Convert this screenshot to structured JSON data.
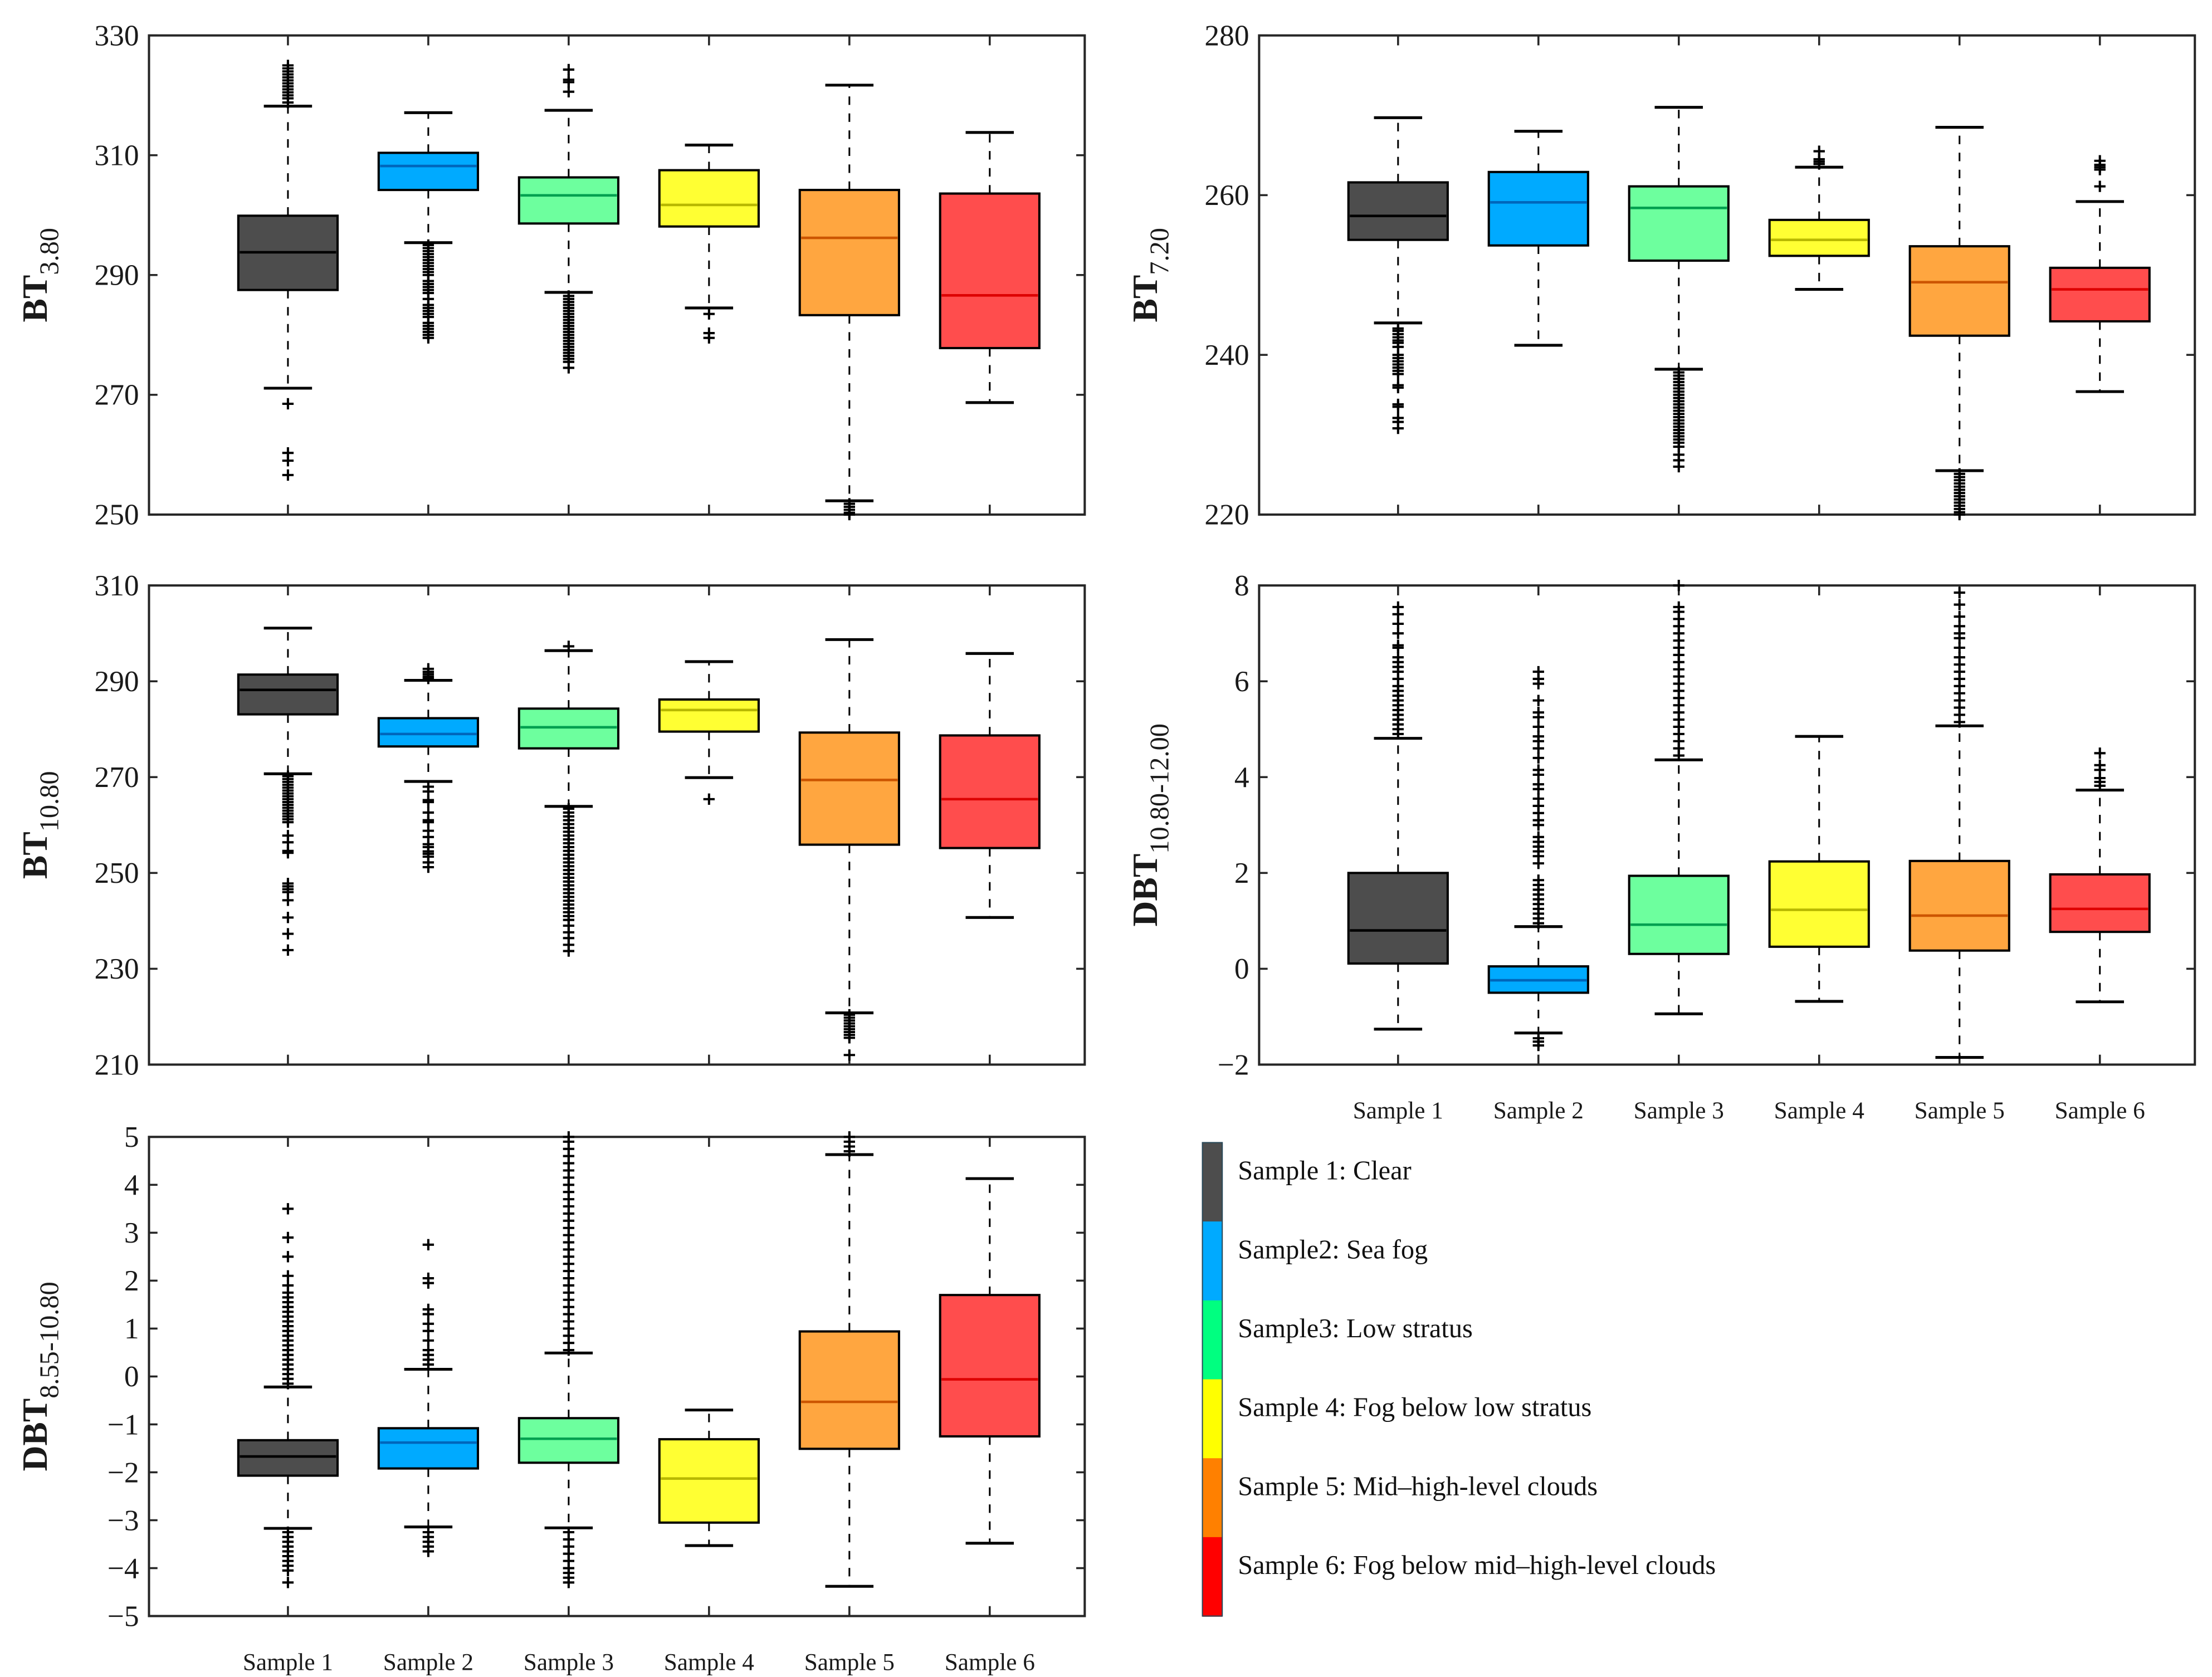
{
  "chart_data": [
    {
      "type": "box",
      "ylabel": "BT",
      "ylabel_sub": "3.80",
      "ylim": [
        250,
        330
      ],
      "yticks": [
        250,
        270,
        290,
        310,
        330
      ],
      "categories": [
        "Sample 1",
        "Sample 2",
        "Sample 3",
        "Sample 4",
        "Sample 5",
        "Sample 6"
      ],
      "show_xticklabels": false,
      "boxes": [
        {
          "whisker_low": 271.1,
          "q1": 287.5,
          "median": 293.8,
          "q3": 299.9,
          "whisker_high": 318.2,
          "outliers": [
            318.8,
            319.5,
            320,
            320.5,
            321,
            321.5,
            322,
            322.5,
            323,
            323.5,
            324,
            324.5,
            325,
            268.5,
            260.3,
            259,
            256.6
          ]
        },
        {
          "whisker_low": 295.4,
          "q1": 304.2,
          "median": 308.2,
          "q3": 310.4,
          "whisker_high": 317.1,
          "outliers": [
            295,
            294.5,
            294,
            293.5,
            293,
            292.5,
            292,
            291.5,
            291,
            290.5,
            290,
            289,
            288.5,
            288,
            287.5,
            287,
            286,
            285,
            284.5,
            284,
            283.5,
            283,
            282,
            281.5,
            281,
            280.5,
            280,
            279.5
          ]
        },
        {
          "whisker_low": 287.1,
          "q1": 298.6,
          "median": 303.3,
          "q3": 306.3,
          "whisker_high": 317.5,
          "outliers": [
            320.6,
            322.2,
            322.6,
            324.3,
            286.5,
            286,
            285.5,
            285,
            284.5,
            284,
            283.5,
            283,
            282.5,
            282,
            281.5,
            281,
            280.5,
            280,
            279.5,
            279,
            278.5,
            278,
            277.5,
            277,
            276.5,
            276,
            275.5,
            274.5
          ]
        },
        {
          "whisker_low": 284.5,
          "q1": 298.1,
          "median": 301.7,
          "q3": 307.5,
          "whisker_high": 311.7,
          "outliers": [
            283.5,
            280.3,
            279.5
          ]
        },
        {
          "whisker_low": 252.3,
          "q1": 283.3,
          "median": 296.2,
          "q3": 304.2,
          "whisker_high": 321.7,
          "outliers": [
            251.8,
            251.3,
            250.8,
            250.3,
            250
          ]
        },
        {
          "whisker_low": 268.7,
          "q1": 277.8,
          "median": 286.6,
          "q3": 303.6,
          "whisker_high": 313.8,
          "outliers": []
        }
      ]
    },
    {
      "type": "box",
      "ylabel": "BT",
      "ylabel_sub": "7.20",
      "ylim": [
        220,
        280
      ],
      "yticks": [
        220,
        240,
        260,
        280
      ],
      "categories": [
        "Sample 1",
        "Sample 2",
        "Sample 3",
        "Sample 4",
        "Sample 5",
        "Sample 6"
      ],
      "show_xticklabels": false,
      "boxes": [
        {
          "whisker_low": 244.0,
          "q1": 254.4,
          "median": 257.4,
          "q3": 261.6,
          "whisker_high": 269.7,
          "outliers": [
            243.3,
            243,
            242.6,
            242.2,
            241.8,
            241.5,
            241,
            240,
            239.6,
            239.2,
            238.8,
            238.4,
            238,
            237.6,
            236.2,
            235.9,
            233.8,
            233.5,
            232.1,
            231.6,
            230.8
          ]
        },
        {
          "whisker_low": 241.2,
          "q1": 253.7,
          "median": 259.1,
          "q3": 262.9,
          "whisker_high": 268.0,
          "outliers": []
        },
        {
          "whisker_low": 238.2,
          "q1": 251.8,
          "median": 258.4,
          "q3": 261.1,
          "whisker_high": 271.0,
          "outliers": [
            237.8,
            237.4,
            237,
            236.6,
            236.2,
            235.8,
            235.4,
            235,
            234.6,
            234.2,
            233.8,
            233.4,
            233,
            232.6,
            232.2,
            231.8,
            231.4,
            231,
            230.6,
            230.2,
            229.8,
            229.4,
            229,
            228.5,
            227.5,
            226.8,
            226
          ]
        },
        {
          "whisker_low": 248.2,
          "q1": 252.4,
          "median": 254.4,
          "q3": 256.9,
          "whisker_high": 263.5,
          "outliers": [
            263.9,
            264.2,
            264.5,
            265.5
          ]
        },
        {
          "whisker_low": 225.5,
          "q1": 242.4,
          "median": 249.1,
          "q3": 253.6,
          "whisker_high": 268.5,
          "outliers": [
            225.1,
            224.7,
            224.3,
            223.9,
            223.5,
            223.1,
            222.7,
            222.3,
            221.9,
            221.5,
            221.1,
            220.7,
            220.3,
            220
          ]
        },
        {
          "whisker_low": 235.4,
          "q1": 244.2,
          "median": 248.2,
          "q3": 250.9,
          "whisker_high": 259.2,
          "outliers": [
            261.1,
            263.2,
            263.5,
            263.8,
            264.3
          ]
        }
      ]
    },
    {
      "type": "box",
      "ylabel": "BT",
      "ylabel_sub": "10.80",
      "ylim": [
        210,
        310
      ],
      "yticks": [
        210,
        230,
        250,
        270,
        290,
        310
      ],
      "categories": [
        "Sample 1",
        "Sample 2",
        "Sample 3",
        "Sample 4",
        "Sample 5",
        "Sample 6"
      ],
      "show_xticklabels": false,
      "boxes": [
        {
          "whisker_low": 270.7,
          "q1": 283.1,
          "median": 288.2,
          "q3": 291.4,
          "whisker_high": 301.1,
          "outliers": [
            270.2,
            269.6,
            269,
            268.4,
            267.8,
            267.2,
            266.6,
            266,
            265.4,
            264.8,
            264.2,
            263.6,
            263,
            262.4,
            261.8,
            261.2,
            260.6,
            257.8,
            256.4,
            254.6,
            254.2,
            247.8,
            247.2,
            246.6,
            246,
            244.3,
            240.7,
            237.3,
            233.9
          ]
        },
        {
          "whisker_low": 269.1,
          "q1": 276.4,
          "median": 279.0,
          "q3": 282.3,
          "whisker_high": 290.2,
          "outliers": [
            290.6,
            291,
            291.5,
            292,
            292.6,
            268,
            267,
            265.2,
            264.8,
            262.6,
            261,
            260.6,
            258.8,
            257.5,
            256,
            255.4,
            254.5,
            254,
            253.4,
            252.2,
            251.2
          ]
        },
        {
          "whisker_low": 263.9,
          "q1": 276.0,
          "median": 280.4,
          "q3": 284.3,
          "whisker_high": 296.4,
          "outliers": [
            297.3,
            263.4,
            262.6,
            261.8,
            261,
            260.2,
            259.4,
            258.6,
            257.8,
            257,
            256.2,
            255.4,
            254.6,
            253.8,
            253,
            252.2,
            251.4,
            250.6,
            249.8,
            249,
            248.2,
            247.4,
            246.6,
            245.8,
            245,
            244.2,
            243.4,
            242.6,
            241.8,
            241,
            240.2,
            239,
            237.6,
            236.4,
            235,
            233.7
          ]
        },
        {
          "whisker_low": 269.9,
          "q1": 279.5,
          "median": 284.0,
          "q3": 286.2,
          "whisker_high": 294.1,
          "outliers": [
            265.4
          ]
        },
        {
          "whisker_low": 220.8,
          "q1": 255.9,
          "median": 269.4,
          "q3": 279.3,
          "whisker_high": 298.7,
          "outliers": [
            220.4,
            219.8,
            219.2,
            218.6,
            218,
            217.4,
            216.8,
            216.2,
            215.6,
            212
          ]
        },
        {
          "whisker_low": 240.7,
          "q1": 255.2,
          "median": 265.4,
          "q3": 278.7,
          "whisker_high": 295.8,
          "outliers": []
        }
      ]
    },
    {
      "type": "box",
      "ylabel": "DBT",
      "ylabel_sub": "10.80-12.00",
      "ylim": [
        -2,
        8
      ],
      "yticks": [
        -2,
        0,
        2,
        4,
        6,
        8
      ],
      "categories": [
        "Sample 1",
        "Sample 2",
        "Sample 3",
        "Sample 4",
        "Sample 5",
        "Sample 6"
      ],
      "show_xticklabels": true,
      "boxes": [
        {
          "whisker_low": -1.26,
          "q1": 0.11,
          "median": 0.8,
          "q3": 2.0,
          "whisker_high": 4.81,
          "outliers": [
            4.9,
            5.0,
            5.1,
            5.2,
            5.3,
            5.4,
            5.5,
            5.6,
            5.7,
            5.8,
            5.9,
            6.05,
            6.2,
            6.3,
            6.4,
            6.5,
            6.7,
            6.75,
            7.0,
            7.2,
            7.4,
            7.55
          ]
        },
        {
          "whisker_low": -1.34,
          "q1": -0.5,
          "median": -0.24,
          "q3": 0.05,
          "whisker_high": 0.88,
          "outliers": [
            0.95,
            1.05,
            1.15,
            1.25,
            1.35,
            1.45,
            1.55,
            1.65,
            1.75,
            1.85,
            2.2,
            2.35,
            2.45,
            2.55,
            2.65,
            2.75,
            3.0,
            3.1,
            3.25,
            3.4,
            3.55,
            3.75,
            3.85,
            4.05,
            4.15,
            4.4,
            4.6,
            4.75,
            4.85,
            5.05,
            5.25,
            5.35,
            5.6,
            5.95,
            6.05,
            6.2,
            -1.45,
            -1.52,
            -1.6
          ]
        },
        {
          "whisker_low": -0.94,
          "q1": 0.31,
          "median": 0.92,
          "q3": 1.94,
          "whisker_high": 4.36,
          "outliers": [
            4.45,
            4.6,
            4.75,
            4.9,
            5.05,
            5.2,
            5.35,
            5.5,
            5.65,
            5.8,
            5.95,
            6.1,
            6.25,
            6.4,
            6.55,
            6.7,
            6.85,
            7.0,
            7.15,
            7.3,
            7.45,
            7.55,
            8.0
          ]
        },
        {
          "whisker_low": -0.68,
          "q1": 0.46,
          "median": 1.23,
          "q3": 2.24,
          "whisker_high": 4.85,
          "outliers": []
        },
        {
          "whisker_low": -1.85,
          "q1": 0.38,
          "median": 1.11,
          "q3": 2.25,
          "whisker_high": 5.07,
          "outliers": [
            5.15,
            5.3,
            5.45,
            5.6,
            5.75,
            5.9,
            6.05,
            6.2,
            6.35,
            6.5,
            6.7,
            6.9,
            7.0,
            7.15,
            7.35,
            7.6,
            7.85
          ]
        },
        {
          "whisker_low": -0.69,
          "q1": 0.77,
          "median": 1.25,
          "q3": 1.97,
          "whisker_high": 3.73,
          "outliers": [
            3.82,
            3.9,
            3.98,
            4.15,
            4.25,
            4.5
          ]
        }
      ]
    },
    {
      "type": "box",
      "ylabel": "DBT",
      "ylabel_sub": "8.55-10.80",
      "ylim": [
        -5,
        5
      ],
      "yticks": [
        -5,
        -4,
        -3,
        -2,
        -1,
        0,
        1,
        2,
        3,
        4,
        5
      ],
      "categories": [
        "Sample 1",
        "Sample 2",
        "Sample 3",
        "Sample 4",
        "Sample 5",
        "Sample 6"
      ],
      "show_xticklabels": true,
      "boxes": [
        {
          "whisker_low": -3.17,
          "q1": -2.07,
          "median": -1.67,
          "q3": -1.33,
          "whisker_high": -0.22,
          "outliers": [
            -0.15,
            -0.05,
            0.05,
            0.15,
            0.25,
            0.35,
            0.45,
            0.55,
            0.65,
            0.75,
            0.85,
            0.95,
            1.05,
            1.15,
            1.25,
            1.35,
            1.45,
            1.55,
            1.65,
            1.75,
            1.9,
            2.1,
            2.5,
            2.9,
            3.5,
            -3.25,
            -3.35,
            -3.45,
            -3.55,
            -3.65,
            -3.75,
            -3.85,
            -3.95,
            -4.05,
            -4.3
          ]
        },
        {
          "whisker_low": -3.14,
          "q1": -1.92,
          "median": -1.38,
          "q3": -1.08,
          "whisker_high": 0.15,
          "outliers": [
            0.25,
            0.35,
            0.45,
            0.55,
            0.75,
            0.95,
            1.1,
            1.3,
            1.4,
            1.95,
            2.05,
            2.75,
            -3.25,
            -3.35,
            -3.45,
            -3.55,
            -3.65
          ]
        },
        {
          "whisker_low": -3.16,
          "q1": -1.8,
          "median": -1.3,
          "q3": -0.87,
          "whisker_high": 0.49,
          "outliers": [
            0.55,
            0.7,
            0.85,
            1.0,
            1.15,
            1.3,
            1.45,
            1.6,
            1.75,
            1.9,
            2.05,
            2.2,
            2.35,
            2.5,
            2.65,
            2.8,
            2.95,
            3.1,
            3.25,
            3.4,
            3.55,
            3.7,
            3.85,
            4.0,
            4.15,
            4.3,
            4.45,
            4.6,
            4.75,
            4.9,
            5.0,
            -3.25,
            -3.4,
            -3.55,
            -3.7,
            -3.85,
            -4.0,
            -4.1,
            -4.2,
            -4.3
          ]
        },
        {
          "whisker_low": -3.53,
          "q1": -3.05,
          "median": -2.13,
          "q3": -1.31,
          "whisker_high": -0.7,
          "outliers": []
        },
        {
          "whisker_low": -4.38,
          "q1": -1.51,
          "median": -0.53,
          "q3": 0.94,
          "whisker_high": 4.63,
          "outliers": [
            4.7,
            4.8,
            4.9,
            5.0
          ]
        },
        {
          "whisker_low": -3.48,
          "q1": -1.25,
          "median": -0.06,
          "q3": 1.7,
          "whisker_high": 4.13,
          "outliers": []
        }
      ]
    }
  ],
  "colors": {
    "box_fill": [
      "#4d4d4d",
      "#00aaff",
      "#6dff9e",
      "#ffff33",
      "#ffa640",
      "#ff4d4d"
    ],
    "median": [
      "#000000",
      "#0066bb",
      "#00a050",
      "#b8b800",
      "#cc5500",
      "#dd0000"
    ],
    "legend": [
      "#4d4d4d",
      "#00aaff",
      "#00ff80",
      "#ffff00",
      "#ff8000",
      "#ff0000"
    ]
  },
  "legend": {
    "items": [
      "Sample 1: Clear",
      "Sample2: Sea fog",
      "Sample3: Low stratus",
      "Sample 4: Fog below low stratus",
      "Sample 5: Mid–high-level clouds",
      "Sample 6: Fog below mid–high-level clouds"
    ]
  }
}
